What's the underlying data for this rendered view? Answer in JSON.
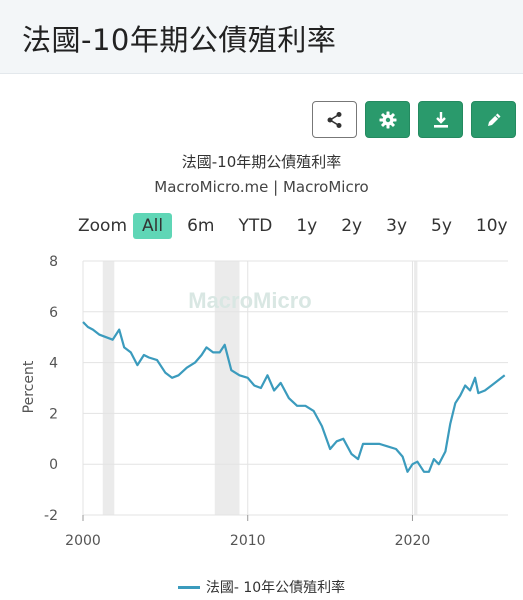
{
  "header": {
    "title": "法國-10年期公債殖利率"
  },
  "toolbar": {
    "buttons": [
      "share-icon",
      "gear-icon",
      "download-icon",
      "pencil-icon"
    ]
  },
  "chart": {
    "title": "法國-10年期公債殖利率",
    "subtitle": "MacroMicro.me | MacroMicro",
    "watermark": "MacroMicro",
    "range_label": "Zoom",
    "ranges": [
      "All",
      "6m",
      "YTD",
      "1y",
      "2y",
      "3y",
      "5y",
      "10y"
    ],
    "active_range": "All"
  },
  "colors": {
    "line": "#3b9bbd",
    "accent": "#2a9a6c",
    "recession_band": "#ebebeb"
  },
  "chart_data": {
    "type": "line",
    "title": "法國-10年期公債殖利率",
    "subtitle": "MacroMicro.me | MacroMicro",
    "xlabel": "",
    "ylabel": "Percent",
    "ylim": [
      -2,
      8
    ],
    "xlim": [
      2000,
      2025.8
    ],
    "yticks": [
      8,
      6,
      4,
      2,
      0,
      -2
    ],
    "xticks": [
      2000,
      2010,
      2020
    ],
    "grid": true,
    "legend_position": "bottom",
    "shaded_periods": [
      [
        2001.2,
        2001.9
      ],
      [
        2008.0,
        2009.5
      ],
      [
        2020.1,
        2020.3
      ]
    ],
    "series": [
      {
        "name": "法國- 10年公債殖利率",
        "x": [
          2000.0,
          2000.3,
          2000.6,
          2001.0,
          2001.4,
          2001.8,
          2002.2,
          2002.5,
          2002.9,
          2003.3,
          2003.7,
          2004.0,
          2004.5,
          2005.0,
          2005.4,
          2005.8,
          2006.3,
          2006.8,
          2007.2,
          2007.5,
          2007.9,
          2008.3,
          2008.6,
          2009.0,
          2009.5,
          2010.0,
          2010.4,
          2010.8,
          2011.2,
          2011.6,
          2012.0,
          2012.5,
          2013.0,
          2013.5,
          2014.0,
          2014.5,
          2015.0,
          2015.4,
          2015.8,
          2016.3,
          2016.7,
          2017.0,
          2017.5,
          2018.0,
          2018.5,
          2019.0,
          2019.4,
          2019.7,
          2020.0,
          2020.3,
          2020.7,
          2021.0,
          2021.3,
          2021.6,
          2022.0,
          2022.3,
          2022.6,
          2022.9,
          2023.2,
          2023.5,
          2023.8,
          2024.0,
          2024.4,
          2024.8,
          2025.2,
          2025.6
        ],
        "values": [
          5.6,
          5.4,
          5.3,
          5.1,
          5.0,
          4.9,
          5.3,
          4.6,
          4.4,
          3.9,
          4.3,
          4.2,
          4.1,
          3.6,
          3.4,
          3.5,
          3.8,
          4.0,
          4.3,
          4.6,
          4.4,
          4.4,
          4.7,
          3.7,
          3.5,
          3.4,
          3.1,
          3.0,
          3.5,
          2.9,
          3.2,
          2.6,
          2.3,
          2.3,
          2.1,
          1.5,
          0.6,
          0.9,
          1.0,
          0.4,
          0.2,
          0.8,
          0.8,
          0.8,
          0.7,
          0.6,
          0.3,
          -0.3,
          0.0,
          0.1,
          -0.3,
          -0.3,
          0.2,
          0.0,
          0.5,
          1.6,
          2.4,
          2.7,
          3.1,
          2.9,
          3.4,
          2.8,
          2.9,
          3.1,
          3.3,
          3.5
        ]
      }
    ]
  }
}
